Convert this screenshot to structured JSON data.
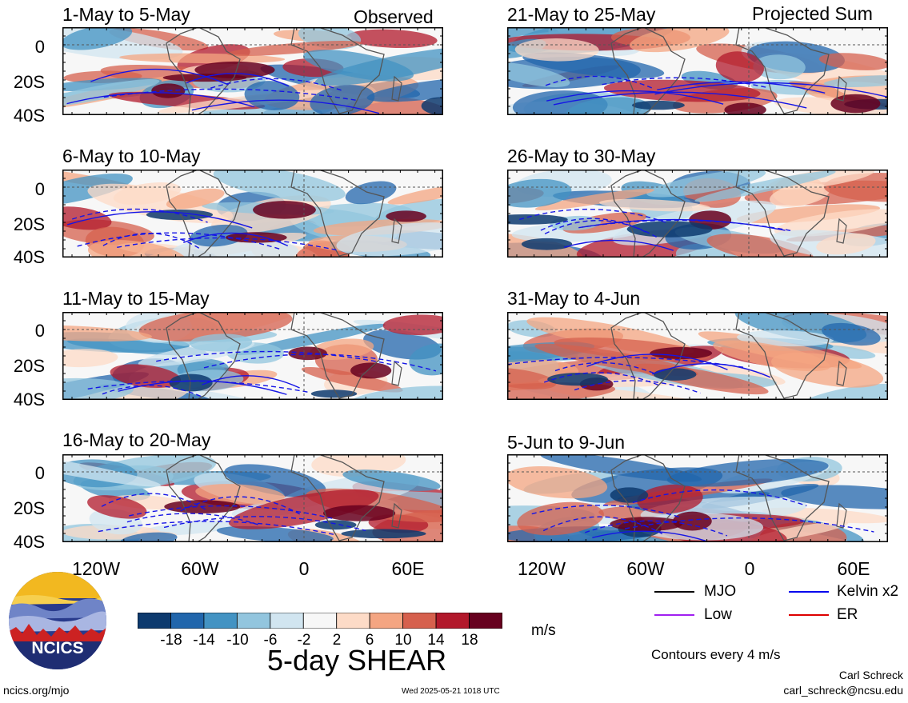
{
  "header": {
    "observed_label": "Observed",
    "projected_label": "Projected Sum"
  },
  "panels_left": [
    {
      "title": "1-May to 5-May"
    },
    {
      "title": "6-May to 10-May"
    },
    {
      "title": "11-May to 15-May"
    },
    {
      "title": "16-May to 20-May"
    }
  ],
  "panels_right": [
    {
      "title": "21-May to 25-May"
    },
    {
      "title": "26-May to 30-May"
    },
    {
      "title": "31-May to 4-Jun"
    },
    {
      "title": "5-Jun to 9-Jun"
    }
  ],
  "axes": {
    "lat_labels": [
      "0",
      "20S",
      "40S"
    ],
    "lon_labels": [
      "120W",
      "60W",
      "0",
      "60E"
    ]
  },
  "colorbar": {
    "labels": [
      "-18",
      "-14",
      "-10",
      "-6",
      "-2",
      "2",
      "6",
      "10",
      "14",
      "18"
    ],
    "colors": [
      "#0d3a6e",
      "#2166ac",
      "#4393c3",
      "#92c5de",
      "#d1e5f0",
      "#f7f7f7",
      "#fddbc7",
      "#f4a582",
      "#d6604d",
      "#b2182b",
      "#67001f"
    ],
    "unit": "m/s",
    "title": "5-day SHEAR"
  },
  "legend": {
    "items": [
      {
        "label": "MJO",
        "color": "#000000"
      },
      {
        "label": "Kelvin x2",
        "color": "#0000ee"
      },
      {
        "label": "Low",
        "color": "#a020f0"
      },
      {
        "label": "ER",
        "color": "#dd0000"
      }
    ],
    "contour_note": "Contours every 4 m/s"
  },
  "logo": {
    "text": "NCICS"
  },
  "footer": {
    "url": "ncics.org/mjo",
    "timestamp": "Wed 2025-05-21 1018 UTC",
    "author": "Carl Schreck",
    "email": "carl_schreck@ncsu.edu"
  }
}
